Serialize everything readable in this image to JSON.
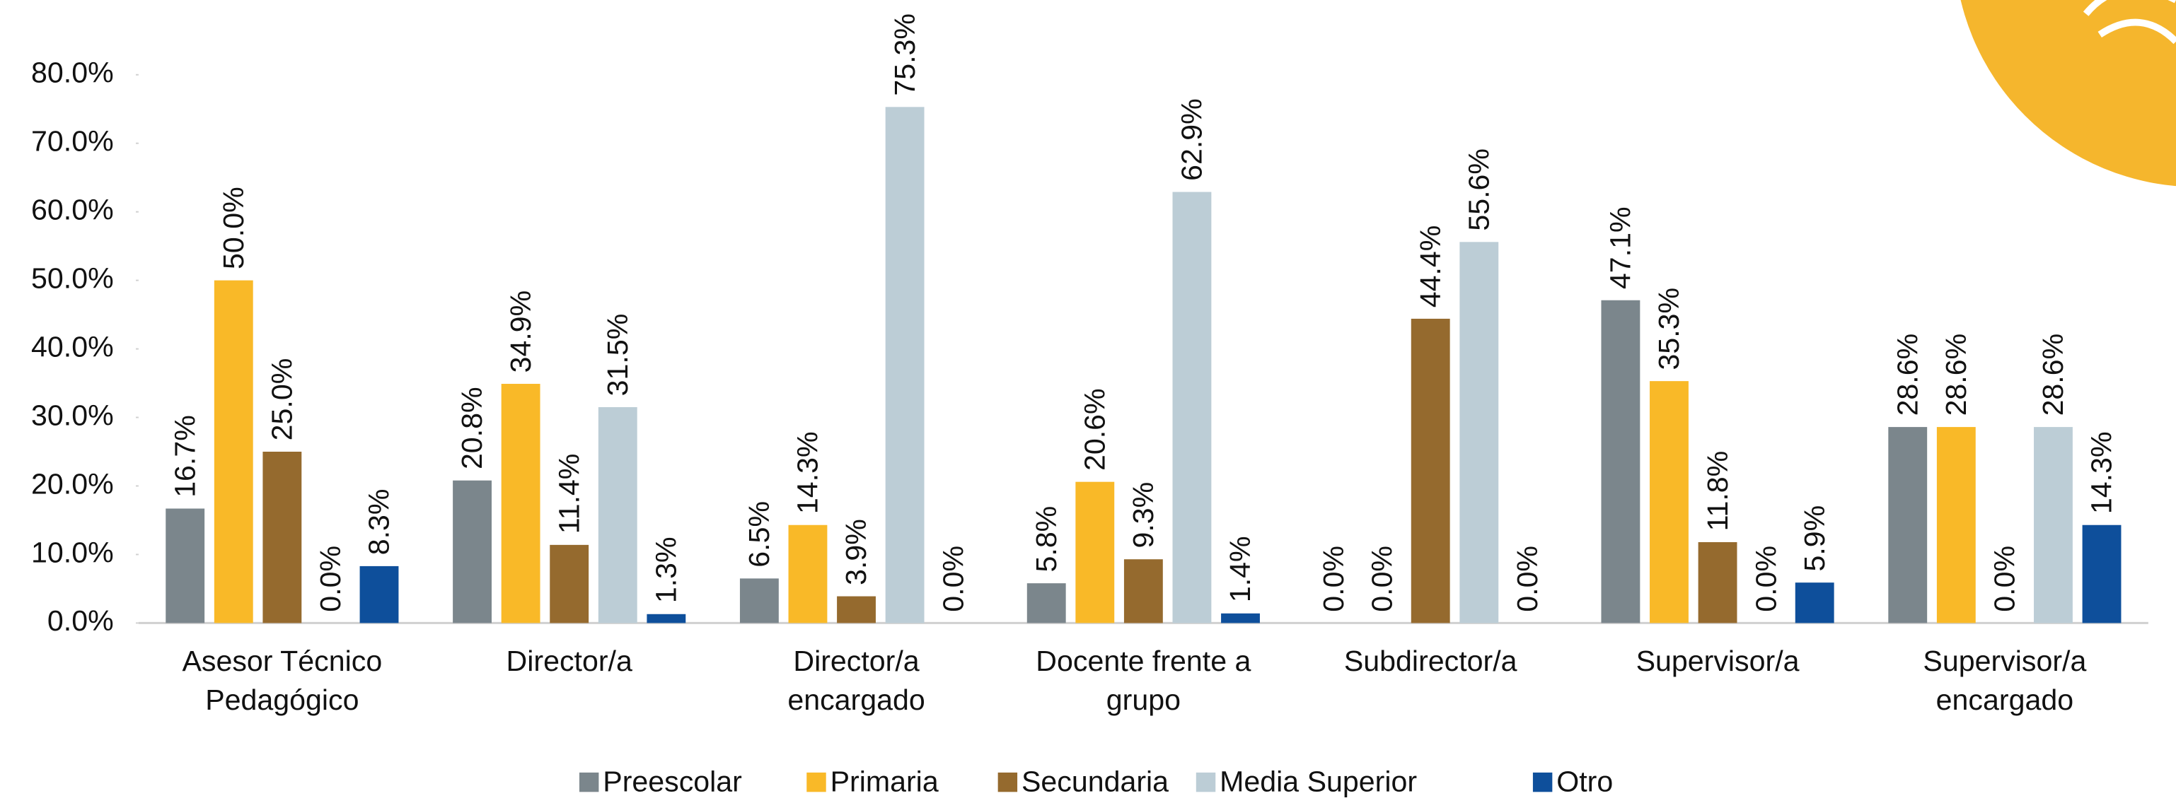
{
  "chart_data": {
    "type": "bar",
    "categories": [
      [
        "Asesor Técnico",
        "Pedagógico"
      ],
      [
        "Director/a"
      ],
      [
        "Director/a",
        "encargado"
      ],
      [
        "Docente frente a",
        "grupo"
      ],
      [
        "Subdirector/a"
      ],
      [
        "Supervisor/a"
      ],
      [
        "Supervisor/a",
        "encargado"
      ]
    ],
    "series": [
      {
        "name": "Preescolar",
        "color": "#7b868c",
        "values": [
          16.7,
          20.8,
          6.5,
          5.8,
          0,
          47.1,
          28.6
        ],
        "value_labels": [
          "16.7%",
          "20.8%",
          "6.5%",
          "5.8%",
          "0.0%",
          "47.1%",
          "28.6%"
        ]
      },
      {
        "name": "Primaria",
        "color": "#f9b928",
        "values": [
          50,
          34.9,
          14.3,
          20.6,
          0,
          35.3,
          28.6
        ],
        "value_labels": [
          "50.0%",
          "34.9%",
          "14.3%",
          "20.6%",
          "0.0%",
          "35.3%",
          "28.6%"
        ]
      },
      {
        "name": "Secundaria",
        "color": "#956a2e",
        "values": [
          25,
          11.4,
          3.9,
          9.3,
          44.4,
          11.8,
          0
        ],
        "value_labels": [
          "25.0%",
          "11.4%",
          "3.9%",
          "9.3%",
          "44.4%",
          "11.8%",
          "0.0%"
        ]
      },
      {
        "name": "Media Superior",
        "color": "#bccdd6",
        "values": [
          0,
          31.5,
          75.3,
          62.9,
          55.6,
          0,
          28.6
        ],
        "value_labels": [
          "0.0%",
          "31.5%",
          "75.3%",
          "62.9%",
          "55.6%",
          "0.0%",
          "28.6%"
        ]
      },
      {
        "name": "Otro",
        "color": "#0e4f9b",
        "values": [
          8.3,
          1.3,
          0,
          1.4,
          0,
          5.9,
          14.3
        ],
        "value_labels": [
          "8.3%",
          "1.3%",
          "0.0%",
          "1.4%",
          "0.0%",
          "5.9%",
          "14.3%"
        ]
      }
    ],
    "ylim": [
      0,
      80
    ],
    "yticks": [
      {
        "value": 0,
        "label": "0.0%"
      },
      {
        "value": 10,
        "label": "10.0%"
      },
      {
        "value": 20,
        "label": "20.0%"
      },
      {
        "value": 30,
        "label": "30.0%"
      },
      {
        "value": 40,
        "label": "40.0%"
      },
      {
        "value": 50,
        "label": "50.0%"
      },
      {
        "value": 60,
        "label": "60.0%"
      },
      {
        "value": 70,
        "label": "70.0%"
      },
      {
        "value": 80,
        "label": "80.0%"
      }
    ],
    "legend": "bottom"
  }
}
